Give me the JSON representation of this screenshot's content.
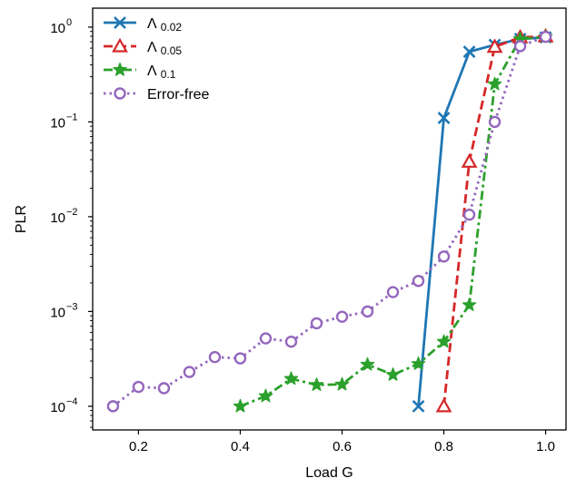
{
  "chart_data": {
    "type": "line",
    "xlabel": "Load G",
    "ylabel": "PLR",
    "xlim": [
      0.11,
      1.04
    ],
    "ylim_log10": [
      -4.25,
      0.2
    ],
    "y_scale": "log",
    "x_ticks": [
      0.2,
      0.4,
      0.6,
      0.8,
      1.0
    ],
    "x_tick_labels": [
      "0.2",
      "0.4",
      "0.6",
      "0.8",
      "1.0"
    ],
    "y_tick_exponents": [
      -4,
      -3,
      -2,
      -1,
      0
    ],
    "y_tick_base": "10",
    "y_tick_exponent_labels": [
      "−4",
      "−3",
      "−2",
      "−1",
      "0"
    ],
    "grid": false,
    "legend_position": "top-left",
    "series": [
      {
        "name": "Λ",
        "name_sub": "0.02",
        "color": "#1f77b4",
        "marker": "x",
        "dash": "solid",
        "x": [
          0.75,
          0.8,
          0.85,
          0.9,
          0.95,
          1.0
        ],
        "y": [
          0.0001,
          0.11,
          0.55,
          0.65,
          0.75,
          0.78
        ]
      },
      {
        "name": "Λ",
        "name_sub": "0.05",
        "color": "#d62728",
        "marker": "triangle",
        "dash": "dashed",
        "x": [
          0.8,
          0.85,
          0.9,
          0.95,
          1.0
        ],
        "y": [
          0.0001,
          0.038,
          0.62,
          0.78,
          0.8
        ]
      },
      {
        "name": "Λ",
        "name_sub": "0.1",
        "color": "#2ca02c",
        "marker": "star",
        "dash": "dashdot",
        "x": [
          0.4,
          0.45,
          0.5,
          0.55,
          0.6,
          0.65,
          0.7,
          0.75,
          0.8,
          0.85,
          0.9,
          0.95,
          1.0
        ],
        "y": [
          0.0001,
          0.000128,
          0.000195,
          0.000168,
          0.00017,
          0.000275,
          0.000215,
          0.00028,
          0.00048,
          0.00117,
          0.25,
          0.75,
          0.79
        ]
      },
      {
        "name": "Error-free",
        "name_sub": "",
        "color": "#9467bd",
        "marker": "circle",
        "dash": "dotted",
        "x": [
          0.15,
          0.2,
          0.25,
          0.3,
          0.35,
          0.4,
          0.45,
          0.5,
          0.55,
          0.6,
          0.65,
          0.7,
          0.75,
          0.8,
          0.85,
          0.9,
          0.95,
          1.0
        ],
        "y": [
          0.0001,
          0.00016,
          0.000155,
          0.00023,
          0.00033,
          0.00032,
          0.00052,
          0.00048,
          0.00075,
          0.00088,
          0.001,
          0.0016,
          0.0021,
          0.0038,
          0.0105,
          0.1,
          0.63,
          0.79
        ]
      }
    ]
  }
}
